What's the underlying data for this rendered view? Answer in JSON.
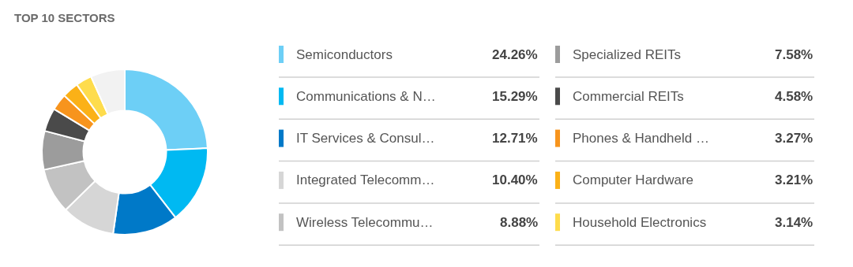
{
  "chart_data": {
    "type": "donut",
    "title": "TOP 10 SECTORS",
    "categories": [
      "Semiconductors",
      "Communications & N…",
      "IT Services & Consul…",
      "Integrated Telecomm…",
      "Wireless Telecommu…",
      "Specialized REITs",
      "Commercial REITs",
      "Phones & Handheld …",
      "Computer Hardware",
      "Household Electronics",
      null
    ],
    "values": [
      24.26,
      15.29,
      12.71,
      10.4,
      8.88,
      7.58,
      4.58,
      3.27,
      3.21,
      3.14,
      6.68
    ],
    "colors": [
      "#6dcff6",
      "#00b9f2",
      "#0079c8",
      "#d6d6d6",
      "#c2c2c2",
      "#9c9c9c",
      "#4a4a4a",
      "#f7941d",
      "#fbb117",
      "#fedc4c",
      "#f2f2f2"
    ],
    "value_labels": [
      "24.26%",
      "15.29%",
      "12.71%",
      "10.40%",
      "8.88%",
      "7.58%",
      "4.58%",
      "3.27%",
      "3.21%",
      "3.14%",
      null
    ],
    "legend": "right"
  }
}
